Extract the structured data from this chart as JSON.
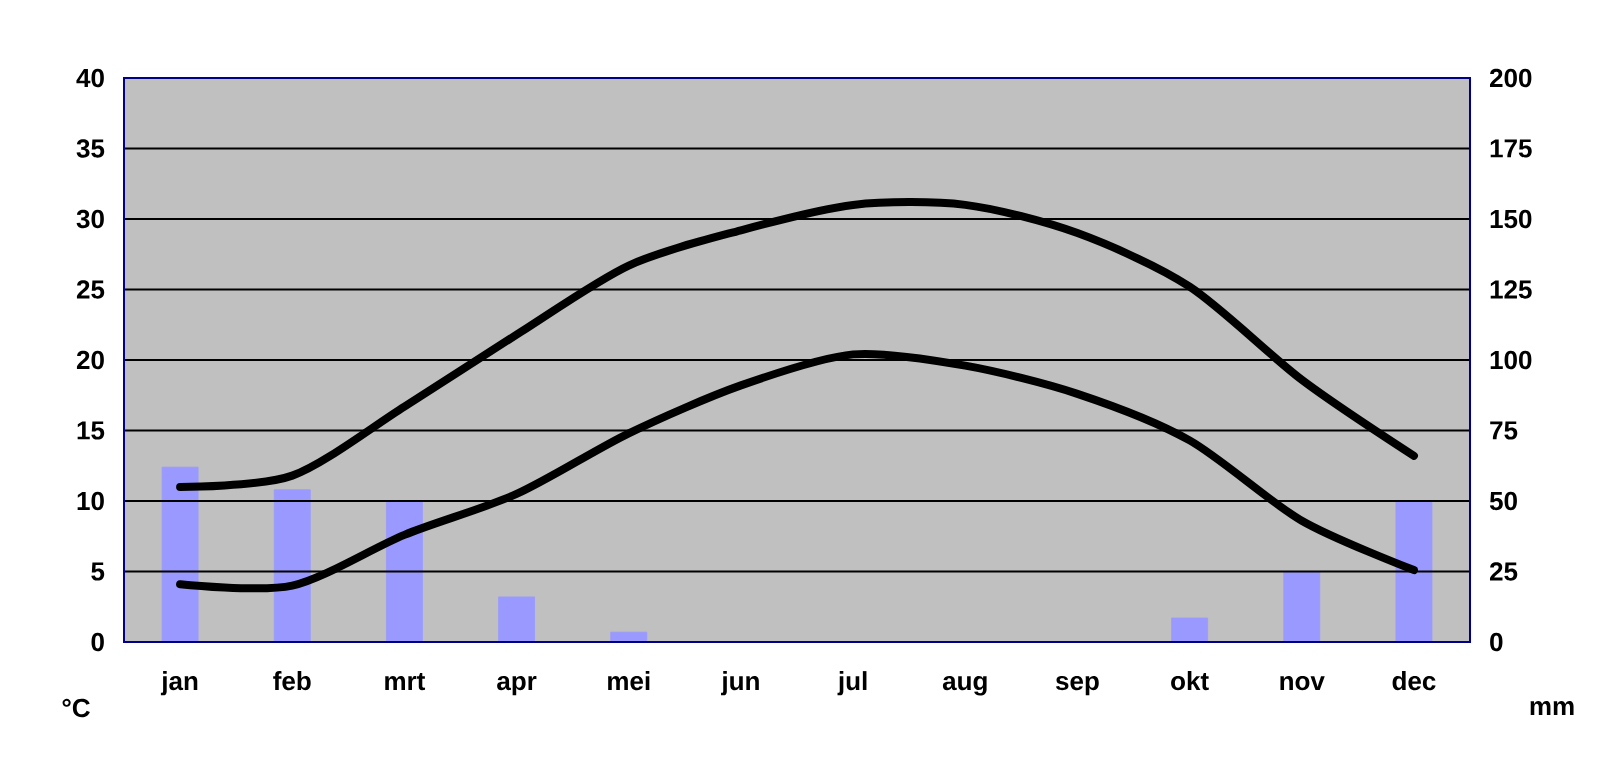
{
  "chart_data": {
    "type": "bar",
    "ylabel": "°C",
    "y2label": "mm",
    "categories": [
      "jan",
      "feb",
      "mrt",
      "apr",
      "mei",
      "jun",
      "jul",
      "aug",
      "sep",
      "okt",
      "nov",
      "dec"
    ],
    "series": [
      {
        "axis": "y2",
        "color": "#9999ff",
        "values": [
          62,
          54,
          50,
          16,
          3.5,
          0,
          0,
          0,
          0,
          8.5,
          25,
          50
        ]
      },
      {
        "type": "line",
        "color": "#000000",
        "values": [
          11,
          11.8,
          16.7,
          21.8,
          26.7,
          29.2,
          31,
          31,
          29,
          25.2,
          18.6,
          13.2
        ]
      },
      {
        "type": "line",
        "color": "#000000",
        "values": [
          4.1,
          4,
          7.6,
          10.5,
          14.8,
          18.2,
          20.4,
          19.6,
          17.6,
          14.3,
          8.6,
          5.1
        ]
      }
    ],
    "ylim": [
      0,
      40
    ],
    "yticks": [
      0,
      5,
      10,
      15,
      20,
      25,
      30,
      35,
      40
    ],
    "y2lim": [
      0,
      200
    ],
    "y2ticks": [
      0,
      25,
      50,
      75,
      100,
      125,
      150,
      175,
      200
    ],
    "grid": "y"
  }
}
